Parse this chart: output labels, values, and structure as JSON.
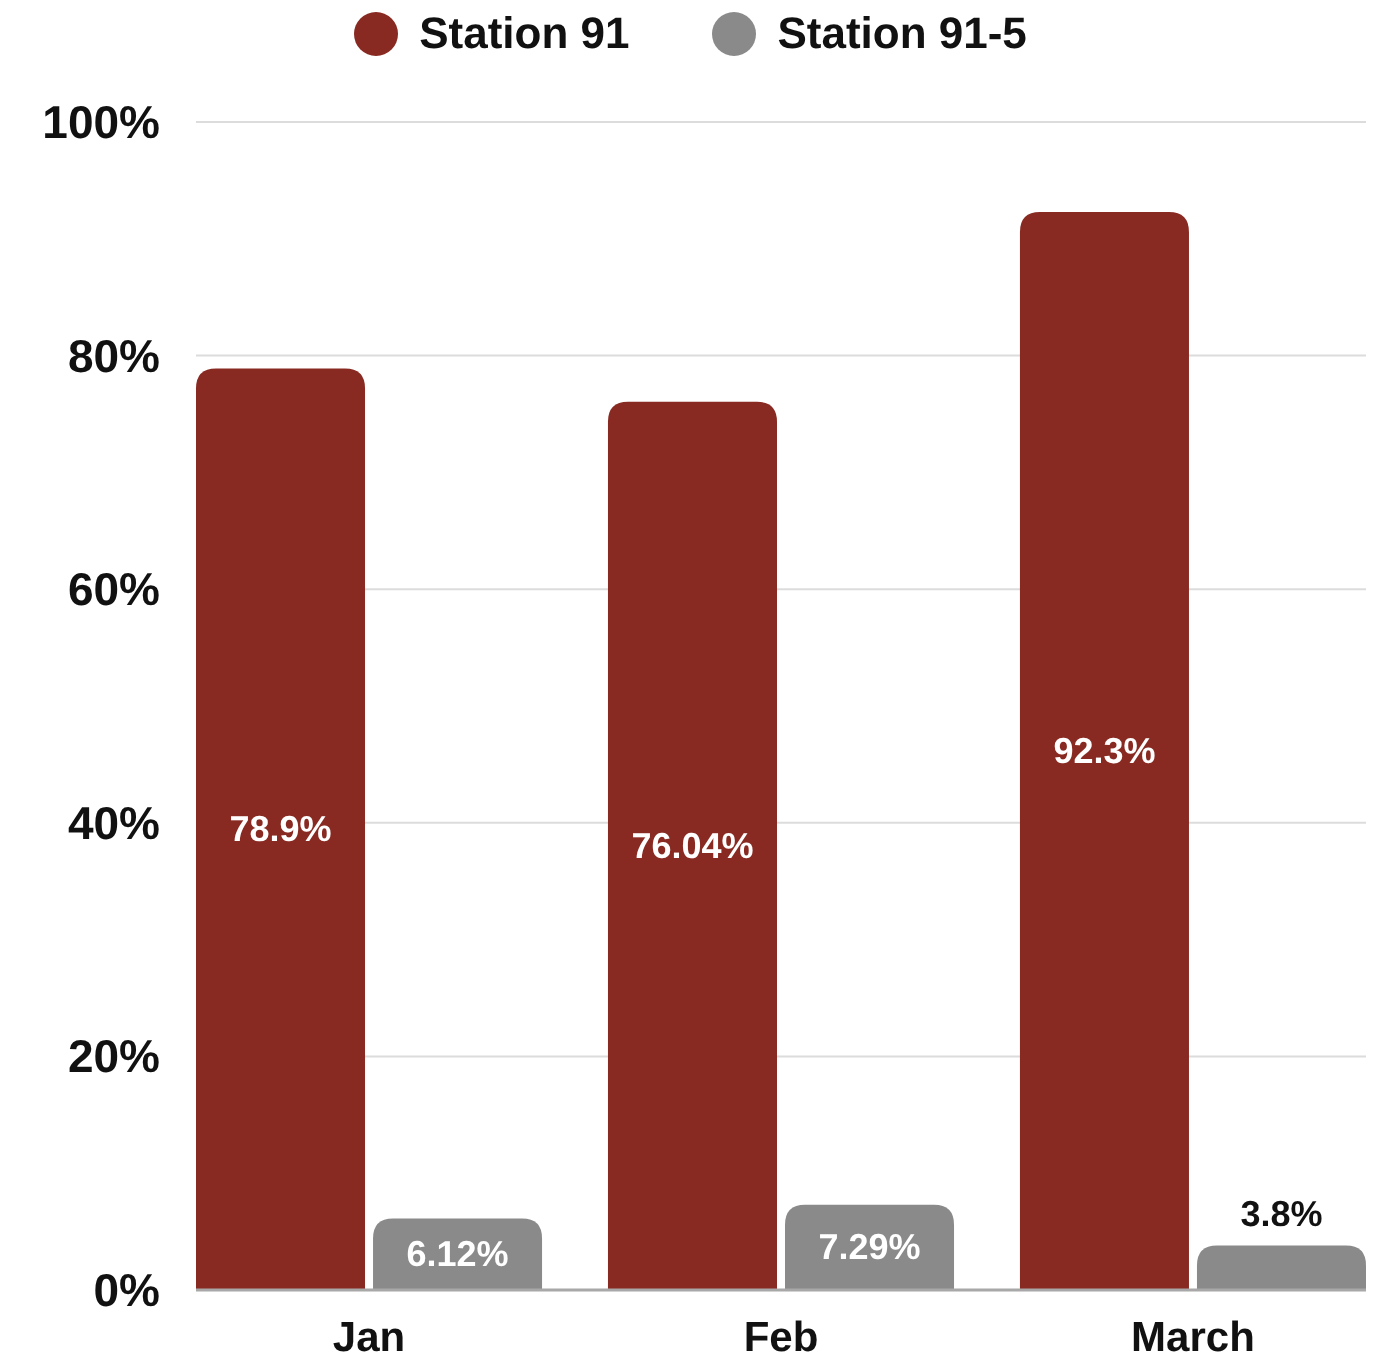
{
  "chart_data": {
    "type": "bar",
    "categories": [
      "Jan",
      "Feb",
      "March"
    ],
    "series": [
      {
        "name": "Station 91",
        "color": "#882a22",
        "values": [
          78.9,
          76.04,
          92.3
        ],
        "value_labels": [
          "78.9%",
          "76.04%",
          "92.3%"
        ]
      },
      {
        "name": "Station 91-5",
        "color": "#8a8a8a",
        "values": [
          6.12,
          7.29,
          3.8
        ],
        "value_labels": [
          "6.12%",
          "7.29%",
          "3.8%"
        ]
      }
    ],
    "ylim": [
      0,
      100
    ],
    "yticks": [
      {
        "value": 0,
        "label": "0%"
      },
      {
        "value": 20,
        "label": "20%"
      },
      {
        "value": 40,
        "label": "40%"
      },
      {
        "value": 60,
        "label": "60%"
      },
      {
        "value": 80,
        "label": "80%"
      },
      {
        "value": 100,
        "label": "100%"
      }
    ],
    "grid": "y",
    "legend": "top"
  }
}
